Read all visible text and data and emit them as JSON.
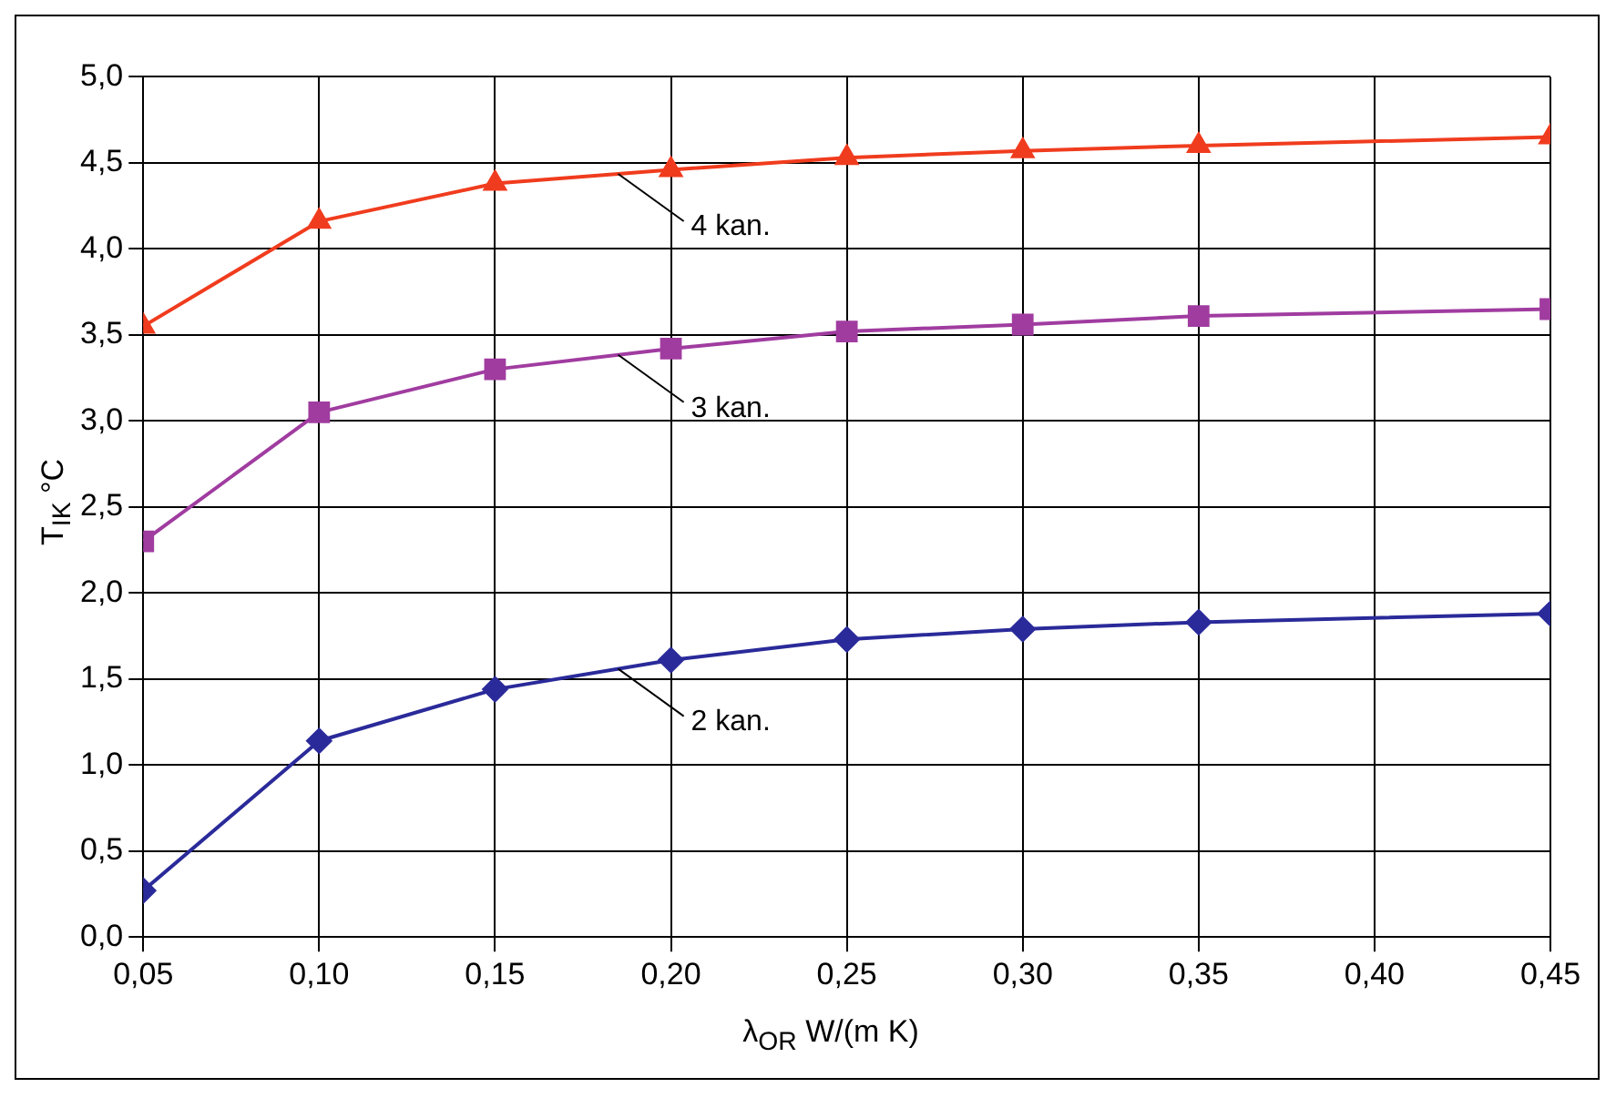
{
  "chart_data": {
    "type": "line",
    "xlabel": "λ$_{OR}$ W/(m K)",
    "ylabel": "T$_{IK}$ °C",
    "xlim": [
      0.05,
      0.45
    ],
    "xticks": [
      {
        "value": 0.05,
        "label": "0,05"
      },
      {
        "value": 0.1,
        "label": "0,10"
      },
      {
        "value": 0.15,
        "label": "0,15"
      },
      {
        "value": 0.2,
        "label": "0,20"
      },
      {
        "value": 0.25,
        "label": "0,25"
      },
      {
        "value": 0.3,
        "label": "0,30"
      },
      {
        "value": 0.35,
        "label": "0,35"
      },
      {
        "value": 0.4,
        "label": "0,40"
      },
      {
        "value": 0.45,
        "label": "0,45"
      }
    ],
    "ylim": [
      0,
      5
    ],
    "yticks": [
      {
        "value": 0,
        "label": "0,0"
      },
      {
        "value": 0.5,
        "label": "0,5"
      },
      {
        "value": 1,
        "label": "1,0"
      },
      {
        "value": 1.5,
        "label": "1,5"
      },
      {
        "value": 2,
        "label": "2,0"
      },
      {
        "value": 2.5,
        "label": "2,5"
      },
      {
        "value": 3,
        "label": "3,0"
      },
      {
        "value": 3.5,
        "label": "3,5"
      },
      {
        "value": 4,
        "label": "4,0"
      },
      {
        "value": 4.5,
        "label": "4,5"
      },
      {
        "value": 5,
        "label": "5,0"
      }
    ],
    "grid": true,
    "legend": false,
    "line_style": "solid",
    "x": [
      0.05,
      0.1,
      0.15,
      0.2,
      0.25,
      0.3,
      0.35,
      0.45
    ],
    "series": [
      {
        "name": "4 kan.",
        "color": "#f03c1e",
        "marker": "triangle",
        "values": [
          3.55,
          4.16,
          4.38,
          4.46,
          4.53,
          4.57,
          4.6,
          4.65
        ]
      },
      {
        "name": "3 kan.",
        "color": "#a03ca0",
        "marker": "square",
        "values": [
          2.3,
          3.05,
          3.3,
          3.42,
          3.52,
          3.56,
          3.61,
          3.65
        ]
      },
      {
        "name": "2 kan.",
        "color": "#2a2a9a",
        "marker": "diamond",
        "values": [
          0.27,
          1.14,
          1.44,
          1.61,
          1.73,
          1.79,
          1.83,
          1.88
        ]
      }
    ]
  }
}
